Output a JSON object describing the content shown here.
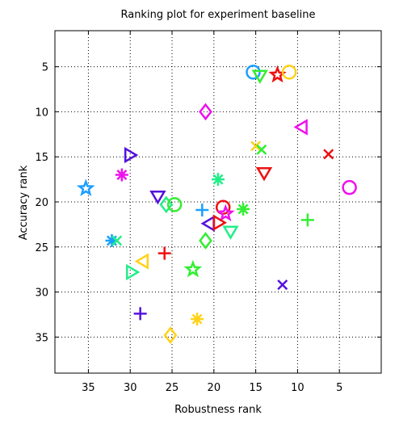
{
  "chart_data": {
    "type": "scatter",
    "title": "Ranking plot for experiment baseline",
    "xlabel": "Robustness rank",
    "ylabel": "Accuracy rank",
    "xlim": [
      39,
      0
    ],
    "ylim": [
      39,
      1
    ],
    "x_reversed": true,
    "y_reversed": true,
    "xticks": [
      35,
      30,
      25,
      20,
      15,
      10,
      5
    ],
    "yticks": [
      5,
      10,
      15,
      20,
      25,
      30,
      35
    ],
    "grid": true,
    "points": [
      {
        "x": 15.3,
        "y": 5.6,
        "marker": "circle",
        "color": "#1a9fff"
      },
      {
        "x": 14.5,
        "y": 6.0,
        "marker": "triangle-down",
        "color": "#33ee33"
      },
      {
        "x": 12.4,
        "y": 5.9,
        "marker": "star",
        "color": "#ee1111"
      },
      {
        "x": 11.0,
        "y": 5.6,
        "marker": "circle",
        "color": "#ffd21a"
      },
      {
        "x": 21.0,
        "y": 10.0,
        "marker": "diamond",
        "color": "#ee11ee"
      },
      {
        "x": 9.5,
        "y": 11.7,
        "marker": "triangle-left",
        "color": "#ee11ee"
      },
      {
        "x": 30.0,
        "y": 14.8,
        "marker": "triangle-right",
        "color": "#5511dd"
      },
      {
        "x": 15.0,
        "y": 13.8,
        "marker": "x",
        "color": "#ffd21a"
      },
      {
        "x": 14.3,
        "y": 14.2,
        "marker": "x",
        "color": "#33ee33"
      },
      {
        "x": 6.3,
        "y": 14.7,
        "marker": "x",
        "color": "#ee1111"
      },
      {
        "x": 31.0,
        "y": 17.0,
        "marker": "asterisk",
        "color": "#ee11ee"
      },
      {
        "x": 19.5,
        "y": 17.5,
        "marker": "asterisk",
        "color": "#22ee88"
      },
      {
        "x": 14.0,
        "y": 16.8,
        "marker": "triangle-down",
        "color": "#ee1111"
      },
      {
        "x": 35.3,
        "y": 18.5,
        "marker": "star",
        "color": "#1a9fff"
      },
      {
        "x": 3.8,
        "y": 18.4,
        "marker": "circle",
        "color": "#ee11ee"
      },
      {
        "x": 26.7,
        "y": 19.4,
        "marker": "triangle-down",
        "color": "#5511dd"
      },
      {
        "x": 25.7,
        "y": 20.3,
        "marker": "diamond",
        "color": "#22ee88"
      },
      {
        "x": 24.7,
        "y": 20.3,
        "marker": "circle",
        "color": "#33ee33"
      },
      {
        "x": 21.4,
        "y": 20.9,
        "marker": "plus",
        "color": "#1a9fff"
      },
      {
        "x": 18.9,
        "y": 20.6,
        "marker": "circle",
        "color": "#ee1111"
      },
      {
        "x": 18.6,
        "y": 21.3,
        "marker": "star",
        "color": "#ee11ee"
      },
      {
        "x": 16.5,
        "y": 20.8,
        "marker": "asterisk",
        "color": "#33ee33"
      },
      {
        "x": 8.8,
        "y": 22.0,
        "marker": "plus",
        "color": "#33ee33"
      },
      {
        "x": 20.6,
        "y": 22.4,
        "marker": "triangle-left",
        "color": "#5511dd"
      },
      {
        "x": 19.4,
        "y": 22.3,
        "marker": "triangle-right",
        "color": "#ee1111"
      },
      {
        "x": 18.0,
        "y": 23.3,
        "marker": "triangle-down",
        "color": "#22ee88"
      },
      {
        "x": 32.2,
        "y": 24.3,
        "marker": "asterisk",
        "color": "#1a9fff"
      },
      {
        "x": 31.6,
        "y": 24.3,
        "marker": "x",
        "color": "#22ee88"
      },
      {
        "x": 21.0,
        "y": 24.3,
        "marker": "diamond",
        "color": "#33ee33"
      },
      {
        "x": 25.9,
        "y": 25.7,
        "marker": "plus",
        "color": "#ee1111"
      },
      {
        "x": 28.5,
        "y": 26.6,
        "marker": "triangle-left",
        "color": "#ffd21a"
      },
      {
        "x": 22.5,
        "y": 27.5,
        "marker": "star",
        "color": "#33ee33"
      },
      {
        "x": 29.8,
        "y": 27.8,
        "marker": "triangle-right",
        "color": "#22ee88"
      },
      {
        "x": 11.8,
        "y": 29.2,
        "marker": "x",
        "color": "#5511dd"
      },
      {
        "x": 28.8,
        "y": 32.4,
        "marker": "plus",
        "color": "#5511dd"
      },
      {
        "x": 22.0,
        "y": 33.0,
        "marker": "asterisk",
        "color": "#ffd21a"
      },
      {
        "x": 25.2,
        "y": 34.8,
        "marker": "diamond",
        "color": "#ffd21a"
      }
    ]
  }
}
